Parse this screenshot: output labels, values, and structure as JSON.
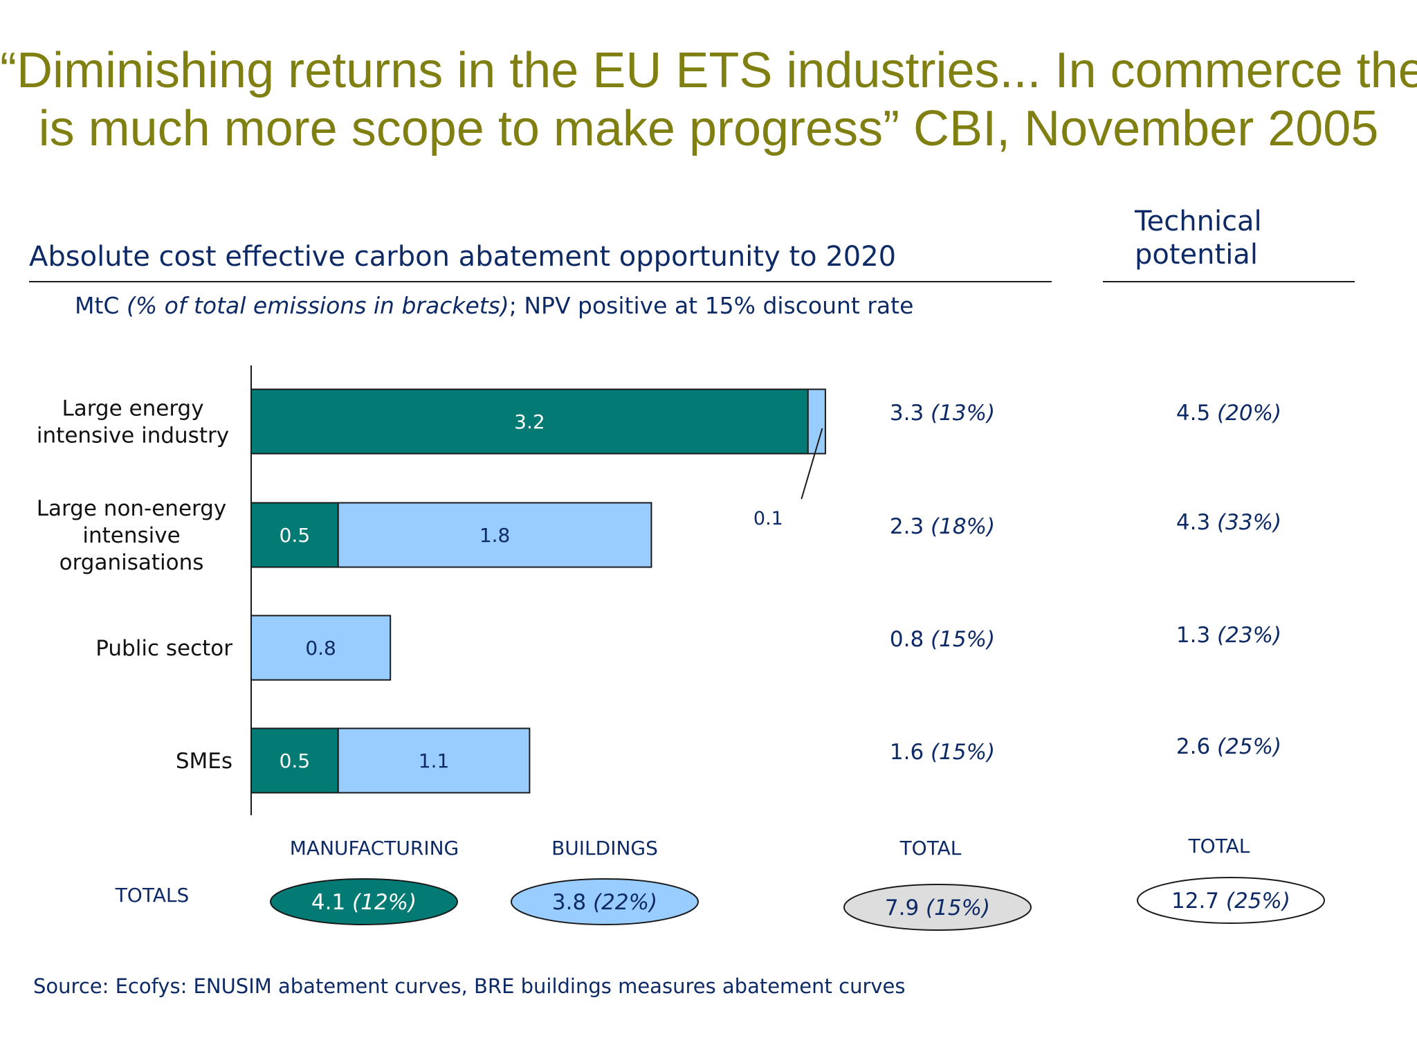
{
  "headline": [
    "“Diminishing returns in the EU ETS industries... In commerce there",
    "is much more scope to make progress” CBI, November 2005"
  ],
  "chart_title": "Absolute cost effective carbon abatement opportunity to 2020",
  "technical_title": "Technical potential",
  "subtitle": {
    "unit": "MtC",
    "bracket_note": "(% of total emissions in brackets)",
    "rest": "; NPV positive at 15% discount rate"
  },
  "colors": {
    "manufacturing": "#037a74",
    "buildings": "#99ccff",
    "total": "#dddddd",
    "technical": "#ffffff",
    "text": "#0d2a66",
    "headline": "#7f7f12"
  },
  "chart_data": {
    "type": "bar",
    "orientation": "horizontal",
    "stacked": true,
    "categories": [
      "Large energy\nintensive industry",
      "Large non-energy\nintensive\norganisations",
      "Public sector",
      "SMEs"
    ],
    "series": [
      {
        "name": "MANUFACTURING",
        "values": [
          3.2,
          0.5,
          0,
          0.5
        ],
        "labels": [
          "3.2",
          "0.5",
          "",
          "0.5"
        ]
      },
      {
        "name": "BUILDINGS",
        "values": [
          0.1,
          1.8,
          0.8,
          1.1
        ],
        "labels": [
          "0.1",
          "1.8",
          "0.8",
          "1.1"
        ]
      }
    ],
    "xlim": [
      0,
      3.3
    ],
    "grid": false,
    "row_totals": {
      "header": "TOTAL",
      "values": [
        3.3,
        2.3,
        0.8,
        1.6
      ],
      "pct": [
        "(13%)",
        "(18%)",
        "(15%)",
        "(15%)"
      ]
    },
    "technical_potential": {
      "header": "TOTAL",
      "values": [
        4.5,
        4.3,
        1.3,
        2.6
      ],
      "pct": [
        "(20%)",
        "(33%)",
        "(23%)",
        "(25%)"
      ]
    },
    "totals": {
      "label": "TOTALS",
      "items": [
        {
          "key": "manufacturing",
          "header": "MANUFACTURING",
          "value": "4.1",
          "pct": "(12%)"
        },
        {
          "key": "buildings",
          "header": "BUILDINGS",
          "value": "3.8",
          "pct": "(22%)"
        },
        {
          "key": "total",
          "header": "",
          "value": "7.9",
          "pct": "(15%)"
        },
        {
          "key": "technical",
          "header": "",
          "value": "12.7",
          "pct": "(25%)"
        }
      ]
    }
  },
  "source": "Source: Ecofys: ENUSIM abatement curves, BRE buildings measures abatement curves"
}
